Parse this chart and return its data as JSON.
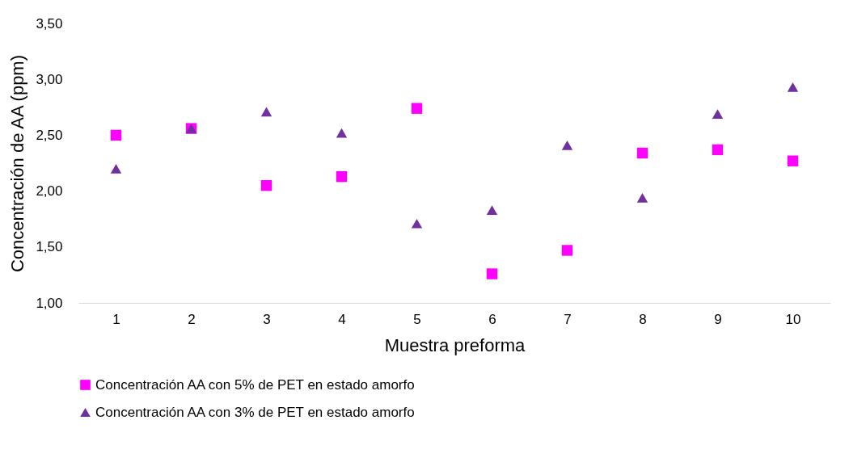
{
  "chart_data": {
    "type": "scatter",
    "xlabel": "Muestra preforma",
    "ylabel": "Concentración de AA (ppm)",
    "categories": [
      "1",
      "2",
      "3",
      "4",
      "5",
      "6",
      "7",
      "8",
      "9",
      "10"
    ],
    "ylim": [
      1,
      3.5
    ],
    "yticks": [
      {
        "value": 1,
        "label": "1,00"
      },
      {
        "value": 1.5,
        "label": "1,50"
      },
      {
        "value": 2,
        "label": "2,00"
      },
      {
        "value": 2.5,
        "label": "2,50"
      },
      {
        "value": 3,
        "label": "3,00"
      },
      {
        "value": 3.5,
        "label": "3,50"
      }
    ],
    "grid": false,
    "legend": "bottom",
    "series": [
      {
        "name": "Concentración AA con 5% de PET en estado amorfo",
        "color": "#ff00ff",
        "marker": "square",
        "values": [
          2.5,
          2.56,
          2.05,
          2.13,
          2.74,
          1.26,
          1.47,
          2.34,
          2.37,
          2.27
        ]
      },
      {
        "name": "Concentración AA con 3% de PET en estado amorfo",
        "color": "#7030a0",
        "marker": "triangle",
        "values": [
          2.2,
          2.56,
          2.71,
          2.52,
          1.71,
          1.83,
          2.41,
          1.94,
          2.69,
          2.93
        ]
      }
    ]
  }
}
